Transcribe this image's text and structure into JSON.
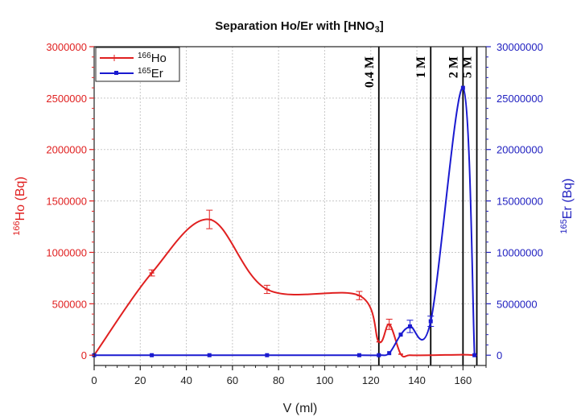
{
  "chart_data": {
    "type": "line",
    "title": "Separation Ho/Er with [HNO",
    "title_sub": "3",
    "title_end": "]",
    "xlabel": "V (ml)",
    "ylabel_left": {
      "sup": "166",
      "text": "Ho (Bq)"
    },
    "ylabel_right": {
      "sup": "165",
      "text": "Er (Bq)"
    },
    "xlim": [
      0,
      170
    ],
    "ylim_left": [
      -100000,
      3000000
    ],
    "ylim_right": [
      -1000000,
      30000000
    ],
    "x_ticks": [
      0,
      20,
      40,
      60,
      80,
      100,
      120,
      140,
      160
    ],
    "y_ticks_left": [
      0,
      500000,
      1000000,
      1500000,
      2000000,
      2500000,
      3000000
    ],
    "y_ticks_right": [
      0,
      5000000,
      10000000,
      15000000,
      20000000,
      25000000,
      30000000
    ],
    "grid": true,
    "legend_position": "top-left",
    "vertical_lines": [
      {
        "x": 123.5,
        "label": "0.4 M"
      },
      {
        "x": 146,
        "label": "1 M"
      },
      {
        "x": 160,
        "label": "2 M"
      },
      {
        "x": 166,
        "label": "5 M"
      }
    ],
    "series": [
      {
        "name": "Ho",
        "name_sup": "166",
        "axis": "left",
        "color": "#e02020",
        "x": [
          0,
          25,
          50,
          75,
          115,
          123.5,
          128,
          133,
          137,
          146,
          160,
          165
        ],
        "y": [
          0,
          800000,
          1320000,
          640000,
          580000,
          130000,
          300000,
          10000,
          0,
          0,
          5000,
          0
        ],
        "errors": [
          0,
          30000,
          90000,
          40000,
          40000,
          0,
          50000,
          0,
          0,
          0,
          0,
          0
        ]
      },
      {
        "name": "Er",
        "name_sup": "165",
        "axis": "right",
        "color": "#1a1ad0",
        "x": [
          0,
          25,
          50,
          75,
          115,
          123.5,
          128,
          133,
          137,
          146,
          160,
          165
        ],
        "y": [
          0,
          0,
          0,
          0,
          0,
          0,
          200000,
          2000000,
          2800000,
          3300000,
          26000000,
          0
        ],
        "errors": [
          0,
          0,
          0,
          0,
          0,
          0,
          0,
          0,
          600000,
          500000,
          0,
          0
        ]
      }
    ]
  }
}
